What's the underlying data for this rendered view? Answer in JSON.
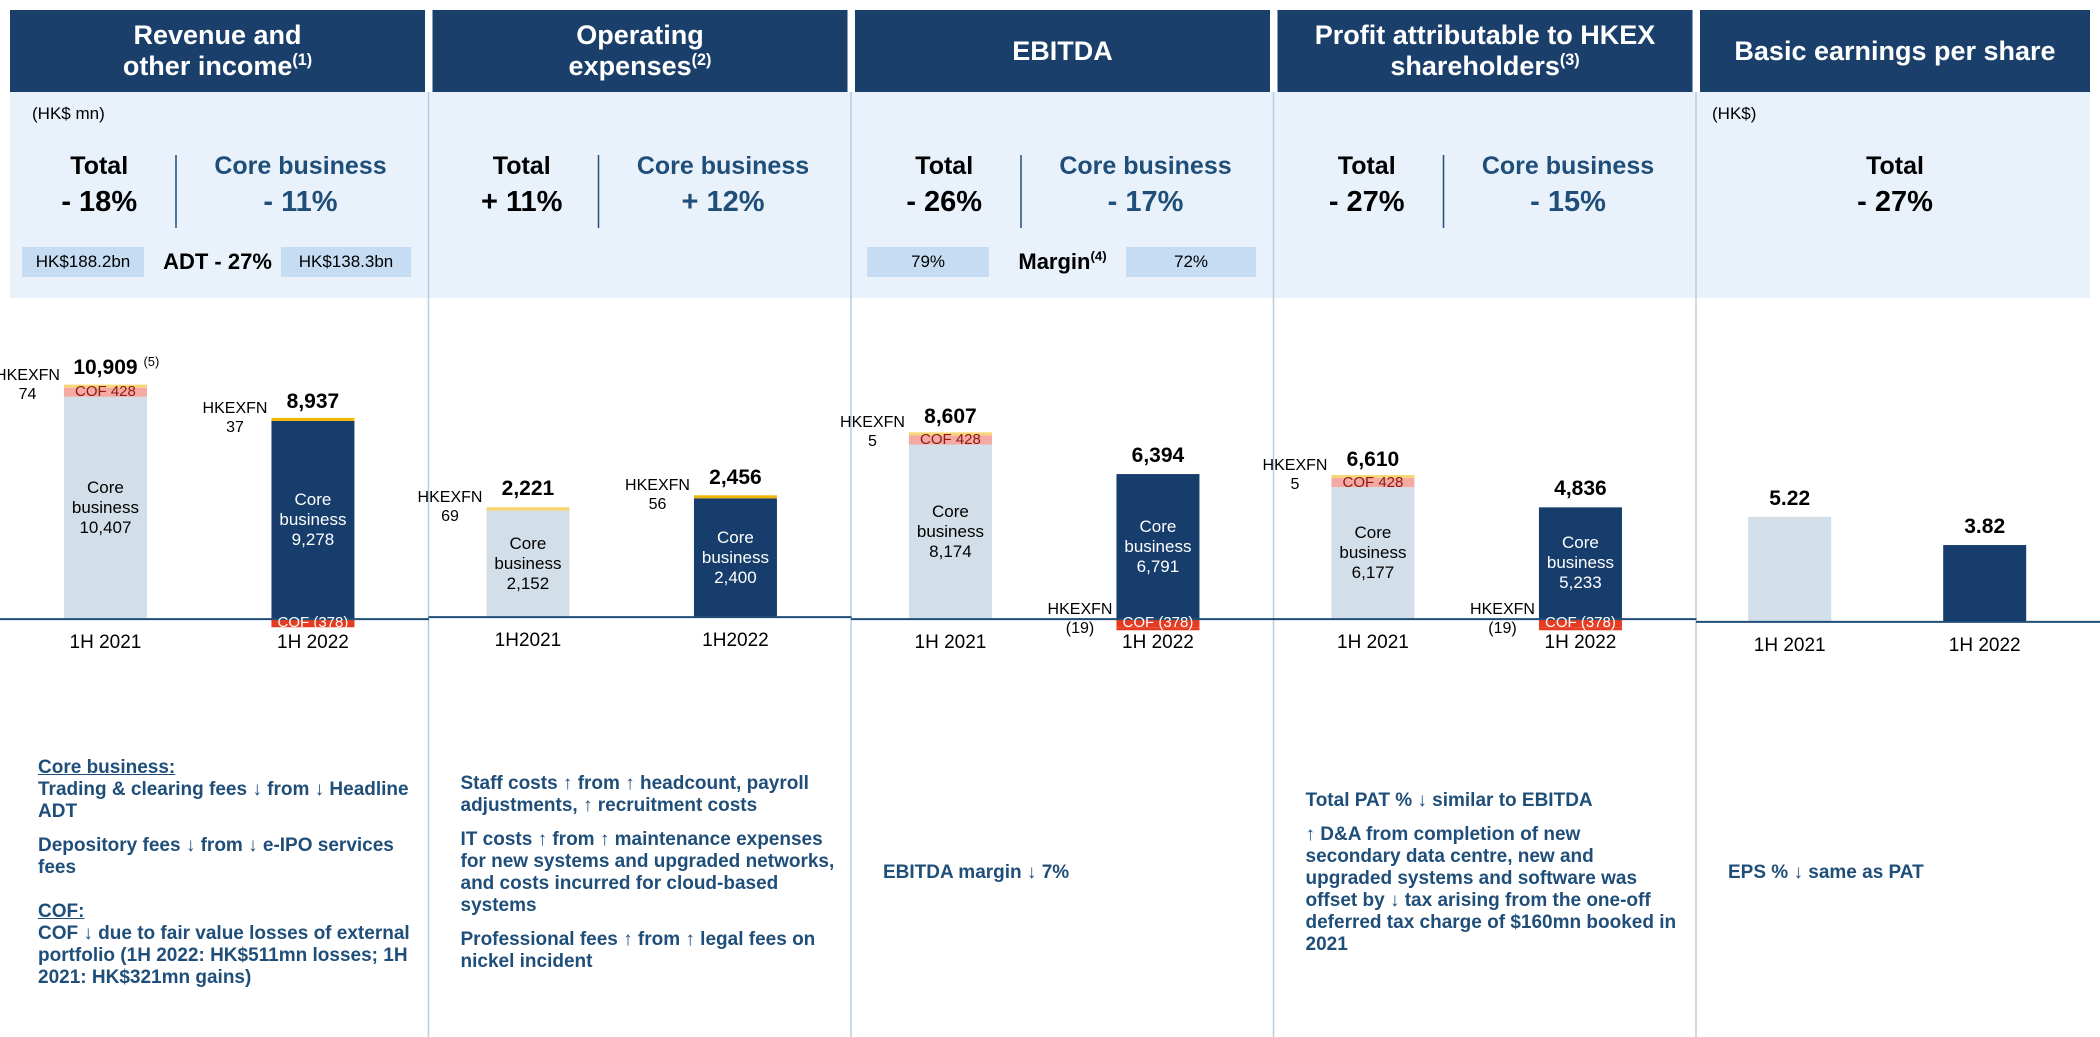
{
  "units": {
    "left": "(HK$ mn)",
    "right": "(HK$)"
  },
  "panels": [
    {
      "title": [
        "Revenue and",
        "other income"
      ],
      "note": "(1)",
      "stats": [
        {
          "label": "Total",
          "value": "- 18%"
        },
        {
          "label": "Core business",
          "value": "- 11%"
        }
      ],
      "compare": {
        "left": "HK$188.2bn",
        "label": "ADT - 27%",
        "right": "HK$138.3bn"
      },
      "commentary": [
        {
          "text": "Core business:",
          "heading": true
        },
        {
          "text": "Trading & clearing fees ↓ from ↓ Headline ADT"
        },
        {
          "text": "Depository fees ↓ from ↓ e-IPO services fees"
        },
        {
          "text": "COF:",
          "heading": true
        },
        {
          "text": "COF ↓ due to fair value losses of external portfolio (1H 2022: HK$511mn losses; 1H 2021: HK$321mn gains)"
        }
      ]
    },
    {
      "title": [
        "Operating",
        "expenses"
      ],
      "note": "(2)",
      "stats": [
        {
          "label": "Total",
          "value": "+ 11%"
        },
        {
          "label": "Core business",
          "value": "+ 12%"
        }
      ],
      "commentary": [
        {
          "text": "Staff costs ↑ from ↑ headcount, payroll adjustments, ↑ recruitment costs"
        },
        {
          "text": "IT costs ↑ from ↑ maintenance expenses for new systems and upgraded networks, and costs incurred for cloud-based systems"
        },
        {
          "text": "Professional fees ↑ from ↑ legal fees on nickel incident"
        }
      ]
    },
    {
      "title": [
        "EBITDA"
      ],
      "stats": [
        {
          "label": "Total",
          "value": "- 26%"
        },
        {
          "label": "Core business",
          "value": "- 17%"
        }
      ],
      "compare": {
        "left": "79%",
        "label": "Margin",
        "note": "(4)",
        "right": "72%"
      },
      "commentary": [
        {
          "text": "EBITDA margin ↓ 7%"
        }
      ]
    },
    {
      "title": [
        "Profit attributable to HKEX",
        "shareholders"
      ],
      "note": "(3)",
      "stats": [
        {
          "label": "Total",
          "value": "- 27%"
        },
        {
          "label": "Core business",
          "value": "- 15%"
        }
      ],
      "commentary": [
        {
          "text": "Total PAT % ↓ similar to EBITDA"
        },
        {
          "text": "↑ D&A from completion of new secondary data centre, new and upgraded systems and software was offset by ↓ tax arising from the one-off deferred tax charge of $160mn booked in 2021"
        }
      ]
    },
    {
      "title": [
        "Basic earnings per share"
      ],
      "stats": [
        {
          "label": "Total",
          "value": "- 27%"
        }
      ],
      "commentary": [
        {
          "text": "EPS % ↓ same as PAT"
        }
      ]
    }
  ],
  "chart_data": [
    {
      "type": "stacked_bar",
      "categories": [
        "1H 2021",
        "1H 2022"
      ],
      "ylim": [
        -600,
        14000
      ],
      "series": [
        {
          "name": "Core business",
          "label_position": "inside",
          "colors": [
            "#d3dfe8",
            "#163d6b"
          ],
          "label_colors": [
            "#000000",
            "#ffffff"
          ],
          "values": [
            10407,
            9278
          ],
          "value_labels": [
            "10,407",
            "9,278"
          ]
        },
        {
          "name": "COF",
          "label_position": "inline",
          "colors": [
            "#f4a9a4",
            "#e63b20"
          ],
          "label_colors": [
            "#8b1a10",
            "#ffffff"
          ],
          "values": [
            428,
            -378
          ],
          "value_labels": [
            "428",
            "(378)"
          ]
        },
        {
          "name": "HKEXFN",
          "label_position": "left",
          "colors": [
            "#f8d675",
            "#f2b705"
          ],
          "label_colors": [
            "#000000",
            "#000000"
          ],
          "values": [
            74,
            37
          ],
          "value_labels": [
            "74",
            "37"
          ]
        }
      ],
      "totals": [
        10909,
        8937
      ],
      "total_labels": [
        "10,909",
        "8,937"
      ],
      "total_note": "(5)"
    },
    {
      "type": "stacked_bar",
      "categories": [
        "1H2021",
        "1H2022"
      ],
      "ylim": [
        -300,
        6000
      ],
      "series": [
        {
          "name": "Core business",
          "label_position": "inside",
          "colors": [
            "#d3dfe8",
            "#163d6b"
          ],
          "label_colors": [
            "#000000",
            "#ffffff"
          ],
          "values": [
            2152,
            2400
          ],
          "value_labels": [
            "2,152",
            "2,400"
          ]
        },
        {
          "name": "HKEXFN",
          "label_position": "left",
          "colors": [
            "#f8d675",
            "#f2b705"
          ],
          "label_colors": [
            "#000000",
            "#000000"
          ],
          "values": [
            69,
            56
          ],
          "value_labels": [
            "69",
            "56"
          ]
        }
      ],
      "totals": [
        2221,
        2456
      ],
      "total_labels": [
        "2,221",
        "2,456"
      ]
    },
    {
      "type": "stacked_bar",
      "categories": [
        "1H 2021",
        "1H 2022"
      ],
      "ylim": [
        -600,
        14000
      ],
      "series": [
        {
          "name": "Core business",
          "label_position": "inside",
          "colors": [
            "#d3dfe8",
            "#163d6b"
          ],
          "label_colors": [
            "#000000",
            "#ffffff"
          ],
          "values": [
            8174,
            6791
          ],
          "value_labels": [
            "8,174",
            "6,791"
          ]
        },
        {
          "name": "COF",
          "label_position": "inline",
          "colors": [
            "#f4a9a4",
            "#e63b20"
          ],
          "label_colors": [
            "#8b1a10",
            "#ffffff"
          ],
          "values": [
            428,
            -378
          ],
          "value_labels": [
            "428",
            "(378)"
          ]
        },
        {
          "name": "HKEXFN",
          "label_position": "left",
          "colors": [
            "#f8d675",
            "#e63b20"
          ],
          "label_colors": [
            "#000000",
            "#000000"
          ],
          "values": [
            5,
            -19
          ],
          "value_labels": [
            "5",
            "(19)"
          ]
        }
      ],
      "totals": [
        8607,
        6394
      ],
      "total_labels": [
        "8,607",
        "6,394"
      ]
    },
    {
      "type": "stacked_bar",
      "categories": [
        "1H 2021",
        "1H 2022"
      ],
      "ylim": [
        -600,
        14000
      ],
      "series": [
        {
          "name": "Core business",
          "label_position": "inside",
          "colors": [
            "#d3dfe8",
            "#163d6b"
          ],
          "label_colors": [
            "#000000",
            "#ffffff"
          ],
          "values": [
            6177,
            5233
          ],
          "value_labels": [
            "6,177",
            "5,233"
          ]
        },
        {
          "name": "COF",
          "label_position": "inline",
          "colors": [
            "#f4a9a4",
            "#e63b20"
          ],
          "label_colors": [
            "#8b1a10",
            "#ffffff"
          ],
          "values": [
            428,
            -378
          ],
          "value_labels": [
            "428",
            "(378)"
          ]
        },
        {
          "name": "HKEXFN",
          "label_position": "left",
          "colors": [
            "#f8d675",
            "#e63b20"
          ],
          "label_colors": [
            "#000000",
            "#000000"
          ],
          "values": [
            5,
            -19
          ],
          "value_labels": [
            "5",
            "(19)"
          ]
        }
      ],
      "totals": [
        6610,
        4836
      ],
      "total_labels": [
        "6,610",
        "4,836"
      ]
    },
    {
      "type": "bar",
      "categories": [
        "1H 2021",
        "1H 2022"
      ],
      "ylim": [
        -0.5,
        15
      ],
      "values": [
        5.22,
        3.82
      ],
      "colors": [
        "#d3dfe8",
        "#163d6b"
      ]
    }
  ]
}
